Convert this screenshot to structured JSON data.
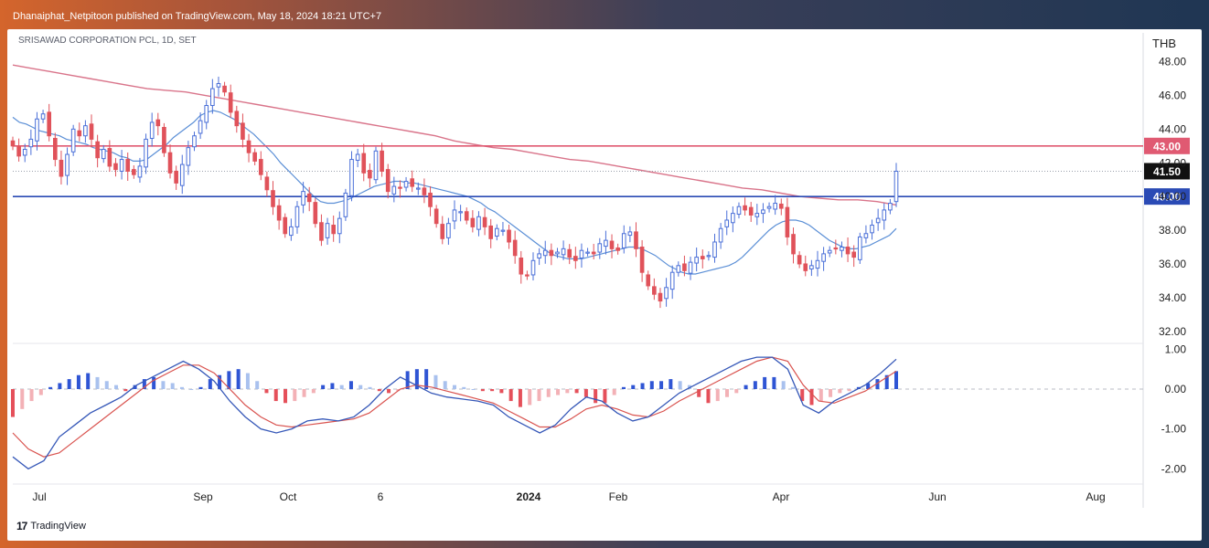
{
  "header": {
    "published_by": "Dhanaiphat_Netpitoon published on TradingView.com, May 18, 2024 18:21 UTC+7"
  },
  "symbol_info": "SRISAWAD CORPORATION PCL, 1D, SET",
  "currency": "THB",
  "brand": "TradingView",
  "colors": {
    "up": "#4a6fd8",
    "down": "#e0525a",
    "ema_fast": "#5b8fd6",
    "ema_slow": "#d9748a",
    "resistance": "#e05a72",
    "support": "#2a4ab5",
    "macd_line": "#3658b8",
    "signal_line": "#d9534f",
    "last_price_bg": "#111111"
  },
  "chart_data": {
    "type": "candlestick",
    "x_labels": [
      "Jul",
      "Sep",
      "Oct",
      "6",
      "2024",
      "Feb",
      "Apr",
      "Jun",
      "Aug"
    ],
    "x_labels_bold": [
      "2024"
    ],
    "price_axis": {
      "ticks": [
        "48.00",
        "46.00",
        "44.00",
        "42.00",
        "40.00",
        "38.00",
        "36.00",
        "34.00",
        "32.00"
      ],
      "range": [
        31.5,
        48.3
      ]
    },
    "levels": [
      {
        "name": "resistance",
        "value": 43.0,
        "label": "43.00"
      },
      {
        "name": "support",
        "value": 40.0,
        "label": "40.00"
      }
    ],
    "last_price": {
      "value": 41.5,
      "label": "41.50"
    },
    "closes": [
      43.0,
      42.4,
      42.8,
      43.4,
      44.6,
      44.9,
      43.6,
      42.2,
      41.2,
      42.5,
      44.0,
      43.6,
      44.2,
      43.4,
      42.3,
      42.8,
      41.8,
      41.6,
      42.2,
      41.5,
      41.3,
      41.8,
      43.4,
      44.4,
      44.2,
      42.6,
      41.4,
      40.8,
      41.9,
      42.9,
      43.6,
      44.5,
      45.4,
      46.4,
      46.7,
      46.2,
      45.0,
      44.2,
      43.4,
      42.6,
      42.1,
      41.3,
      40.4,
      39.4,
      38.6,
      37.8,
      38.2,
      39.4,
      40.3,
      39.7,
      38.4,
      37.4,
      38.4,
      37.8,
      38.7,
      40.2,
      42.2,
      42.5,
      41.4,
      41.1,
      42.7,
      41.5,
      40.3,
      40.6,
      40.5,
      40.9,
      40.6,
      40.5,
      40.1,
      39.4,
      38.4,
      37.5,
      38.4,
      39.2,
      39.1,
      38.6,
      38.2,
      38.8,
      38.2,
      37.5,
      38.1,
      38.0,
      37.3,
      36.5,
      35.4,
      35.3,
      36.2,
      36.6,
      36.8,
      36.5,
      36.7,
      36.9,
      36.4,
      36.2,
      36.8,
      36.7,
      36.6,
      37.2,
      37.4,
      36.9,
      36.8,
      37.8,
      37.9,
      36.9,
      35.5,
      34.7,
      34.2,
      33.8,
      34.6,
      35.5,
      35.9,
      35.6,
      36.1,
      36.4,
      36.3,
      36.5,
      37.3,
      38.1,
      38.6,
      39.0,
      39.4,
      39.2,
      38.9,
      39.0,
      39.2,
      39.4,
      39.6,
      39.3,
      37.6,
      36.6,
      36.0,
      35.6,
      35.9,
      36.2,
      36.6,
      36.8,
      36.9,
      37.0,
      36.6,
      36.4,
      37.6,
      37.8,
      38.3,
      38.7,
      39.2,
      39.6,
      41.5
    ],
    "ema_fast": [
      44.7,
      44.4,
      44.3,
      44.1,
      43.9,
      43.8,
      43.7,
      43.6,
      43.4,
      43.3,
      43.2,
      43.1,
      42.9,
      42.8,
      42.7,
      42.6,
      42.4,
      42.3,
      42.1,
      42.1,
      42.2,
      42.5,
      42.8,
      43.1,
      43.5,
      43.8,
      44.1,
      44.4,
      44.8,
      45.0,
      45.1,
      45.0,
      44.8,
      44.6,
      44.3,
      44.0,
      43.7,
      43.3,
      42.9,
      42.5,
      42.0,
      41.6,
      41.2,
      40.8,
      40.4,
      40.0,
      39.7,
      39.6,
      39.6,
      39.7,
      39.8,
      40.0,
      40.2,
      40.4,
      40.6,
      40.7,
      40.8,
      40.9,
      40.9,
      40.8,
      40.8,
      40.7,
      40.6,
      40.5,
      40.4,
      40.3,
      40.2,
      40.1,
      40.0,
      39.8,
      39.6,
      39.3,
      39.1,
      38.8,
      38.5,
      38.2,
      37.9,
      37.6,
      37.3,
      37.0,
      36.7,
      36.5,
      36.4,
      36.3,
      36.3,
      36.3,
      36.4,
      36.5,
      36.6,
      36.7,
      36.8,
      36.9,
      37.0,
      37.0,
      36.9,
      36.7,
      36.5,
      36.2,
      35.9,
      35.7,
      35.5,
      35.4,
      35.4,
      35.5,
      35.6,
      35.7,
      35.8,
      35.9,
      36.1,
      36.4,
      36.8,
      37.2,
      37.6,
      38.0,
      38.3,
      38.5,
      38.6,
      38.6,
      38.5,
      38.3,
      38.0,
      37.7,
      37.4,
      37.2,
      37.0,
      36.9,
      36.9,
      37.0,
      37.1,
      37.3,
      37.5,
      37.7,
      38.1
    ],
    "ema_slow": [
      47.8,
      47.6,
      47.4,
      47.2,
      47.0,
      46.8,
      46.6,
      46.4,
      46.3,
      46.2,
      46.0,
      45.8,
      45.6,
      45.4,
      45.2,
      45.0,
      44.8,
      44.6,
      44.4,
      44.2,
      44.0,
      43.8,
      43.6,
      43.3,
      43.1,
      42.9,
      42.8,
      42.6,
      42.4,
      42.2,
      42.1,
      41.9,
      41.7,
      41.5,
      41.3,
      41.1,
      40.9,
      40.7,
      40.5,
      40.4,
      40.2,
      40.0,
      39.9,
      39.8,
      39.8,
      39.7,
      39.5
    ],
    "macd_axis": {
      "ticks": [
        "1.00",
        "0.00",
        "-1.00",
        "-2.00"
      ],
      "range": [
        -2.2,
        1.1
      ]
    },
    "macd_hist": [
      -0.7,
      -0.5,
      -0.3,
      -0.15,
      0.05,
      0.15,
      0.25,
      0.35,
      0.4,
      0.3,
      0.2,
      0.1,
      -0.05,
      0.1,
      0.25,
      0.3,
      0.2,
      0.15,
      0.05,
      0.0,
      0.05,
      0.25,
      0.35,
      0.45,
      0.5,
      0.4,
      0.2,
      -0.1,
      -0.3,
      -0.35,
      -0.3,
      -0.2,
      -0.1,
      0.1,
      0.15,
      0.1,
      0.2,
      0.1,
      0.05,
      -0.05,
      -0.1,
      -0.05,
      0.45,
      0.5,
      0.5,
      0.35,
      0.2,
      0.1,
      0.05,
      0.0,
      -0.05,
      -0.05,
      -0.1,
      -0.3,
      -0.45,
      -0.4,
      -0.3,
      -0.2,
      -0.15,
      -0.1,
      -0.1,
      -0.2,
      -0.35,
      -0.35,
      -0.15,
      0.05,
      0.1,
      0.15,
      0.2,
      0.2,
      0.25,
      0.2,
      0.1,
      -0.2,
      -0.35,
      -0.3,
      -0.2,
      -0.1,
      0.1,
      0.2,
      0.3,
      0.3,
      0.2,
      0.05,
      -0.3,
      -0.4,
      -0.3,
      -0.2,
      -0.1,
      -0.05,
      0.05,
      0.15,
      0.25,
      0.35,
      0.45
    ],
    "macd_line": [
      -1.7,
      -2.0,
      -1.8,
      -1.2,
      -0.9,
      -0.6,
      -0.4,
      -0.2,
      0.1,
      0.3,
      0.5,
      0.7,
      0.5,
      0.2,
      -0.3,
      -0.7,
      -1.0,
      -1.1,
      -1.0,
      -0.8,
      -0.75,
      -0.8,
      -0.7,
      -0.4,
      0.0,
      0.3,
      0.1,
      -0.1,
      -0.2,
      -0.25,
      -0.3,
      -0.4,
      -0.7,
      -0.9,
      -1.1,
      -0.9,
      -0.5,
      -0.2,
      -0.3,
      -0.6,
      -0.8,
      -0.7,
      -0.4,
      -0.1,
      0.1,
      0.3,
      0.5,
      0.7,
      0.8,
      0.8,
      0.5,
      -0.4,
      -0.6,
      -0.3,
      -0.1,
      0.1,
      0.4,
      0.75
    ],
    "macd_signal": [
      -1.1,
      -1.5,
      -1.7,
      -1.6,
      -1.3,
      -1.0,
      -0.7,
      -0.4,
      -0.1,
      0.2,
      0.4,
      0.6,
      0.6,
      0.4,
      0.0,
      -0.4,
      -0.7,
      -0.9,
      -0.95,
      -0.9,
      -0.85,
      -0.8,
      -0.75,
      -0.6,
      -0.3,
      0.0,
      0.1,
      0.05,
      -0.05,
      -0.15,
      -0.25,
      -0.35,
      -0.55,
      -0.75,
      -0.95,
      -0.95,
      -0.75,
      -0.5,
      -0.4,
      -0.5,
      -0.65,
      -0.7,
      -0.55,
      -0.3,
      -0.1,
      0.1,
      0.3,
      0.5,
      0.7,
      0.8,
      0.7,
      0.1,
      -0.3,
      -0.35,
      -0.2,
      -0.05,
      0.2,
      0.45
    ]
  }
}
